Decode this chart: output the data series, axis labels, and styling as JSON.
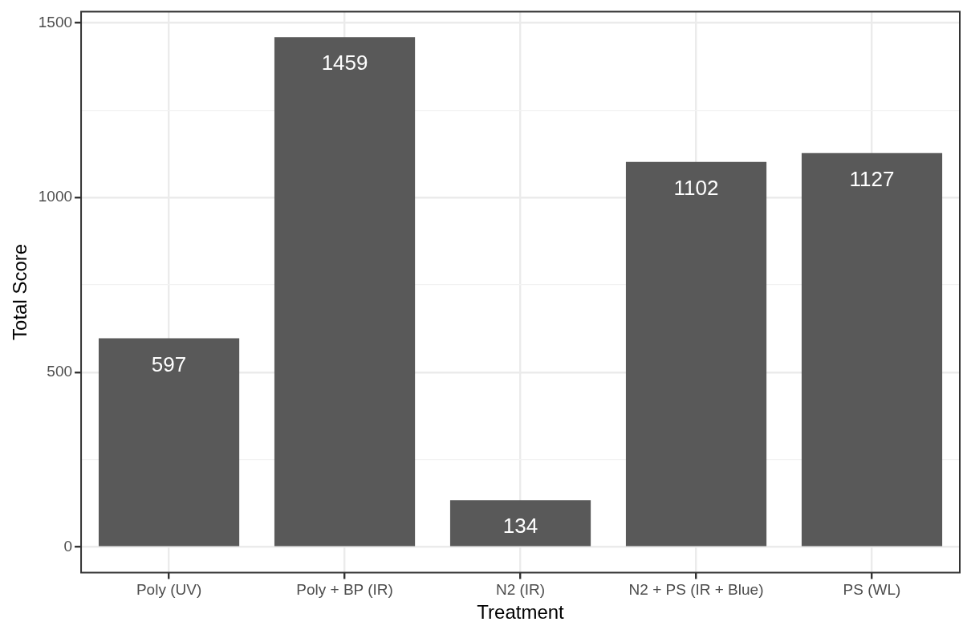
{
  "chart_data": {
    "type": "bar",
    "xlabel": "Treatment",
    "ylabel": "Total Score",
    "categories": [
      "Poly (UV)",
      "Poly + BP (IR)",
      "N2 (IR)",
      "N2 + PS (IR + Blue)",
      "PS (WL)"
    ],
    "values": [
      597,
      1459,
      134,
      1102,
      1127
    ],
    "color": "#595959",
    "ylim": [
      -73,
      1532
    ],
    "yticks": [
      0,
      {
        "value": 250,
        "label": null
      },
      500,
      {
        "value": 750,
        "label": null
      },
      1000,
      {
        "value": 1250,
        "label": null
      },
      1500
    ],
    "grid": true,
    "data_labels": true,
    "legend": false
  }
}
